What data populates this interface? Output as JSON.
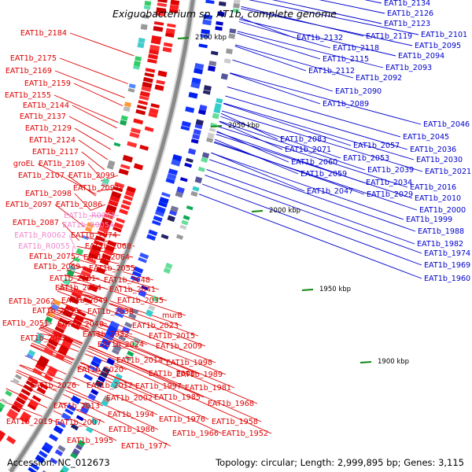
{
  "title": "Exiguobacterium sp. AT1b, complete genome",
  "footer": {
    "accession": "Accession: NC_012673",
    "stats": "Topology: circular; Length: 2,999,895 bp; Genes: 3,115"
  },
  "colors": {
    "backbone": "#8a8a8a",
    "forward_label": "#0000cc",
    "reverse_label": "#dd0000",
    "rna_label": "#ee88cc",
    "tick": "#118811"
  },
  "ticks": [
    "2100 kbp",
    "2050 kbp",
    "2000 kbp",
    "1950 kbp",
    "1900 kbp"
  ],
  "labels_left": [
    "EAT1b_2184",
    "EAT1b_2175",
    "EAT1b_2169",
    "EAT1b_2159",
    "EAT1b_2155",
    "EAT1b_2144",
    "EAT1b_2137",
    "EAT1b_2129",
    "EAT1b_2124",
    "EAT1b_2117",
    "groEL",
    "EAT1b_2109",
    "EAT1b_2107",
    "EAT1b_2099",
    "EAT1b_2091",
    "EAT1b_2098",
    "EAT1b_2097",
    "EAT1b_2086",
    "EAT1b_R0061",
    "EAT1b_R0054",
    "EAT1b_2087",
    "EAT1b_R0062",
    "EAT1b_2074",
    "EAT1b_R0055",
    "EAT1b_2068",
    "EAT1b_2075",
    "EAT1b_2064",
    "EAT1b_2069",
    "EAT1b_2055",
    "EAT1b_2061",
    "EAT1b_2048",
    "EAT1b_2054",
    "EAT1b_2041",
    "EAT1b_2062",
    "EAT1b_2049",
    "EAT1b_2035",
    "EAT1b_2050",
    "EAT1b_2038",
    "EAT1b_2051",
    "EAT1b_2040",
    "murB",
    "EAT1b_2023",
    "EAT1b_2042",
    "EAT1b_2032",
    "EAT1b_2015",
    "EAT1b_2024",
    "EAT1b_2009",
    "EAT1b_2014",
    "EAT1b_1998",
    "EAT1b_2020",
    "EAT1b_2006",
    "EAT1b_1989",
    "EAT1b_2026",
    "EAT1b_2012",
    "EAT1b_1997",
    "EAT1b_1981",
    "EAT1b_2002",
    "EAT1b_1985",
    "EAT1b_2013",
    "EAT1b_1968",
    "EAT1b_1994",
    "EAT1b_2019",
    "EAT1b_2007",
    "EAT1b_1976",
    "EAT1b_1958",
    "EAT1b_1986",
    "EAT1b_1966",
    "EAT1b_1952",
    "EAT1b_1995",
    "EAT1b_1977"
  ],
  "labels_right": [
    "EAT1b_2134",
    "EAT1b_2126",
    "EAT1b_2123",
    "EAT1b_2132",
    "EAT1b_2119",
    "EAT1b_2101",
    "EAT1b_2118",
    "EAT1b_2095",
    "EAT1b_2115",
    "EAT1b_2094",
    "EAT1b_2093",
    "EAT1b_2112",
    "EAT1b_2092",
    "EAT1b_2090",
    "EAT1b_2089",
    "EAT1b_2046",
    "EAT1b_2083",
    "EAT1b_2045",
    "EAT1b_2071",
    "EAT1b_2057",
    "EAT1b_2036",
    "EAT1b_2053",
    "EAT1b_2060",
    "EAT1b_2030",
    "EAT1b_2039",
    "EAT1b_2059",
    "EAT1b_2021",
    "EAT1b_2034",
    "EAT1b_2016",
    "EAT1b_2047",
    "EAT1b_2029",
    "EAT1b_2010",
    "EAT1b_2000",
    "EAT1b_1999",
    "EAT1b_1988",
    "EAT1b_1982",
    "EAT1b_1974",
    "EAT1b_1969",
    "EAT1b_1960"
  ]
}
